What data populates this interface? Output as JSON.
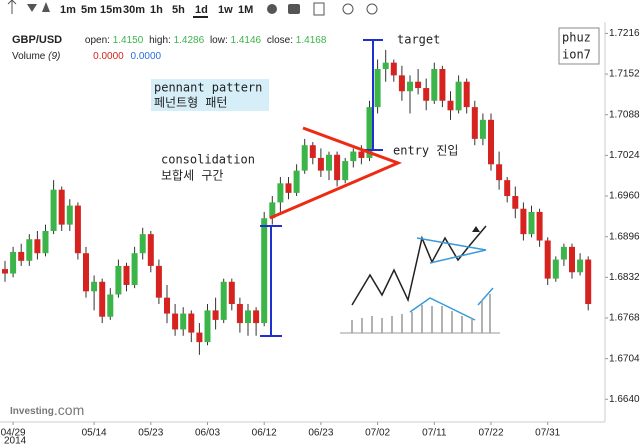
{
  "toolbar": {
    "intervals": [
      "1m",
      "5m",
      "15m",
      "30m",
      "1h",
      "5h",
      "1d",
      "1w",
      "1M"
    ]
  },
  "chart_data": {
    "type": "candlestick",
    "info": {
      "symbol": "GBP/USD",
      "open_label": "open:",
      "open": {
        "value": 1.415,
        "label": "1.4150"
      },
      "high_label": "high:",
      "high": 1.4286,
      "low_label": "low:",
      "low": 1.4146,
      "close_label": "close:",
      "close": 1.4168,
      "volume_label": "Volume",
      "volume_period": "(9)",
      "volume_a": {
        "value": 0,
        "label": "0.0000"
      },
      "volume_b": {
        "value": 0,
        "label": "0.0000"
      }
    },
    "categories": [
      null,
      "04/29",
      null,
      null,
      null,
      null,
      null,
      null,
      null,
      null,
      null,
      "05/14",
      null,
      null,
      null,
      null,
      null,
      null,
      "05/23",
      null,
      null,
      null,
      null,
      null,
      null,
      "06/03",
      null,
      null,
      null,
      null,
      null,
      null,
      "06/12",
      null,
      null,
      null,
      null,
      null,
      null,
      "06/23",
      null,
      null,
      null,
      null,
      null,
      null,
      "07/02",
      null,
      null,
      null,
      null,
      null,
      null,
      "07/11",
      null,
      null,
      null,
      null,
      null,
      null,
      "07/22",
      null,
      null,
      null,
      null,
      null,
      null,
      "07/31",
      null,
      null,
      null,
      null,
      null
    ],
    "year_label": "2014",
    "open": [
      1.6845,
      1.6838,
      1.6872,
      1.6858,
      1.6892,
      1.687,
      1.6905,
      1.697,
      1.6915,
      1.6945,
      1.687,
      1.681,
      1.6825,
      1.677,
      1.6805,
      1.685,
      1.682,
      1.687,
      1.69,
      1.685,
      1.68,
      1.6775,
      1.675,
      1.6775,
      1.6745,
      1.673,
      1.678,
      1.6765,
      1.6825,
      1.679,
      1.676,
      1.678,
      1.676,
      1.6925,
      1.695,
      1.698,
      1.6965,
      1.7,
      1.704,
      1.702,
      1.7,
      1.7025,
      1.6985,
      1.7015,
      1.703,
      1.702,
      1.71,
      1.716,
      1.717,
      1.715,
      1.7125,
      1.714,
      1.713,
      1.711,
      1.716,
      1.711,
      1.7095,
      1.714,
      1.71,
      1.705,
      1.708,
      1.701,
      1.6985,
      1.696,
      1.694,
      1.69,
      1.6935,
      1.689,
      1.683,
      1.686,
      1.688,
      1.684,
      1.686
    ],
    "high": [
      1.6858,
      1.688,
      1.6885,
      1.69,
      1.6905,
      1.6915,
      1.6985,
      1.6975,
      1.6955,
      1.695,
      1.688,
      1.6835,
      1.683,
      1.6815,
      1.686,
      1.6855,
      1.688,
      1.691,
      1.6905,
      1.686,
      1.682,
      1.679,
      1.6785,
      1.678,
      1.676,
      1.679,
      1.68,
      1.683,
      1.683,
      1.68,
      1.679,
      1.6785,
      1.6935,
      1.696,
      1.699,
      1.699,
      1.701,
      1.705,
      1.7045,
      1.7035,
      1.703,
      1.703,
      1.702,
      1.7035,
      1.704,
      1.711,
      1.7175,
      1.719,
      1.7175,
      1.7165,
      1.715,
      1.716,
      1.7145,
      1.717,
      1.7165,
      1.7125,
      1.715,
      1.7145,
      1.711,
      1.709,
      1.709,
      1.703,
      1.699,
      1.6975,
      1.695,
      1.6945,
      1.694,
      1.6895,
      1.6865,
      1.6885,
      1.6885,
      1.687,
      1.6865
    ],
    "low": [
      1.6825,
      1.6832,
      1.685,
      1.685,
      1.686,
      1.6865,
      1.69,
      1.6905,
      1.6905,
      1.686,
      1.68,
      1.678,
      1.676,
      1.6765,
      1.68,
      1.681,
      1.6815,
      1.686,
      1.684,
      1.679,
      1.676,
      1.674,
      1.674,
      1.673,
      1.671,
      1.6725,
      1.675,
      1.676,
      1.678,
      1.6745,
      1.674,
      1.674,
      1.6755,
      1.6915,
      1.6935,
      1.6955,
      1.696,
      1.6995,
      1.701,
      1.699,
      1.6985,
      1.6975,
      1.698,
      1.7005,
      1.701,
      1.7015,
      1.709,
      1.714,
      1.714,
      1.711,
      1.709,
      1.712,
      1.7095,
      1.7105,
      1.71,
      1.708,
      1.709,
      1.709,
      1.704,
      1.704,
      1.7,
      1.697,
      1.695,
      1.6925,
      1.689,
      1.6895,
      1.688,
      1.682,
      1.6825,
      1.685,
      1.683,
      1.6835,
      1.678
    ],
    "close": [
      1.6838,
      1.6872,
      1.6858,
      1.6892,
      1.687,
      1.6905,
      1.697,
      1.6915,
      1.6945,
      1.687,
      1.681,
      1.6825,
      1.677,
      1.6805,
      1.685,
      1.682,
      1.687,
      1.69,
      1.685,
      1.68,
      1.6775,
      1.675,
      1.6775,
      1.6745,
      1.673,
      1.678,
      1.6765,
      1.6825,
      1.679,
      1.676,
      1.678,
      1.676,
      1.6925,
      1.695,
      1.698,
      1.6965,
      1.7,
      1.704,
      1.702,
      1.7,
      1.7025,
      1.6985,
      1.7015,
      1.703,
      1.702,
      1.71,
      1.716,
      1.717,
      1.715,
      1.7125,
      1.714,
      1.713,
      1.711,
      1.716,
      1.711,
      1.7095,
      1.714,
      1.71,
      1.705,
      1.708,
      1.701,
      1.6985,
      1.696,
      1.694,
      1.69,
      1.6935,
      1.689,
      1.683,
      1.686,
      1.688,
      1.684,
      1.686,
      1.679
    ],
    "up_color": "#3bb44a",
    "down_color": "#d6231f",
    "ylim": [
      1.662,
      1.7234
    ],
    "yticks": [
      {
        "value": 1.664,
        "label": "1.6640"
      },
      1.6704,
      1.6768,
      1.6832,
      1.6896,
      {
        "value": 1.696,
        "label": "1.6960"
      },
      1.7024,
      1.7088,
      1.7152,
      1.7216
    ],
    "annotations": {
      "pennant_en": "pennant pattern",
      "pennant_ko": "페넌트형 패턴",
      "consolidation_en": "consolidation",
      "consolidation_ko": "보합세 구간",
      "target": "target",
      "entry": "entry 진입",
      "author": [
        "phuz",
        "ion7"
      ]
    },
    "watermark": {
      "brand": "Investing",
      "suffix": ".com"
    }
  }
}
